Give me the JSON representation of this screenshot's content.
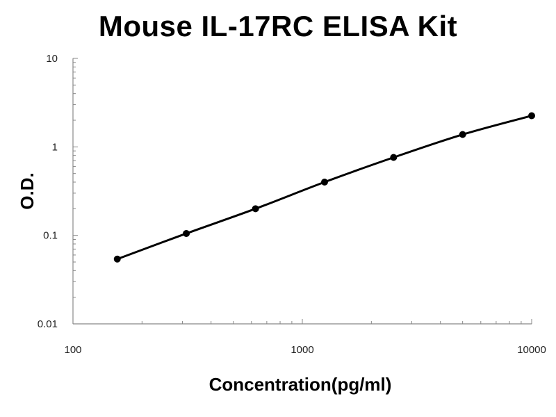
{
  "chart_data": {
    "type": "line",
    "title": "Mouse IL-17RC ELISA Kit",
    "xlabel": "Concentration(pg/ml)",
    "ylabel": "O.D.",
    "x_scale": "log",
    "y_scale": "log",
    "xlim": [
      100,
      10000
    ],
    "ylim": [
      0.01,
      10
    ],
    "x_ticks": [
      {
        "value": 100,
        "label": "100"
      },
      {
        "value": 1000,
        "label": "1000"
      },
      {
        "value": 10000,
        "label": "10000"
      }
    ],
    "y_ticks": [
      {
        "value": 0.01,
        "label": "0.01"
      },
      {
        "value": 0.1,
        "label": "0.1"
      },
      {
        "value": 1,
        "label": "1"
      },
      {
        "value": 10,
        "label": "10"
      }
    ],
    "grid": false,
    "legend": "none",
    "series": [
      {
        "x": [
          156,
          312,
          625,
          1250,
          2500,
          5000,
          10000
        ],
        "y": [
          0.054,
          0.105,
          0.2,
          0.4,
          0.76,
          1.38,
          2.25
        ]
      }
    ],
    "colors": {
      "line": "#000000",
      "marker": "#000000",
      "axis": "#888888"
    }
  }
}
